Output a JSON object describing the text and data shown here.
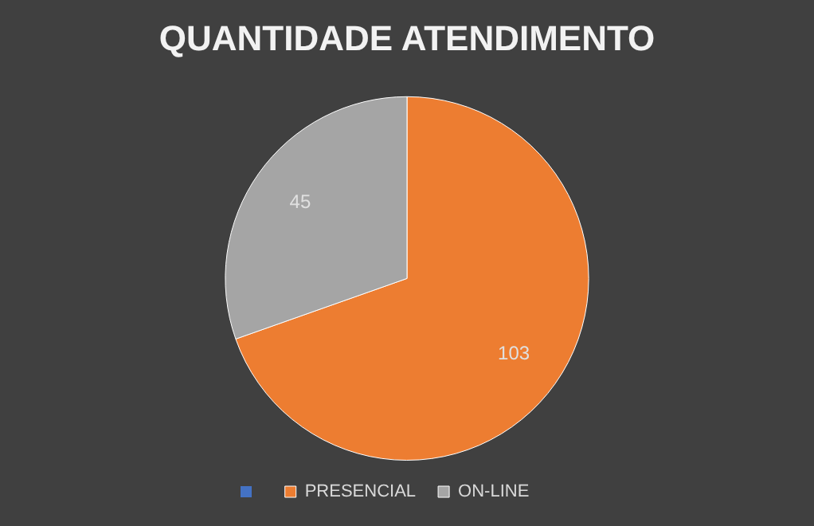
{
  "chart_data": {
    "type": "pie",
    "title": "QUANTIDADE ATENDIMENTO",
    "categories": [
      null,
      "PRESENCIAL",
      "ON-LINE"
    ],
    "values": [
      0,
      103,
      45
    ],
    "colors": [
      "#4472c4",
      "#ed7d31",
      "#a5a5a5"
    ],
    "value_labels": [
      null,
      "103",
      "45"
    ],
    "legend": "bottom"
  }
}
